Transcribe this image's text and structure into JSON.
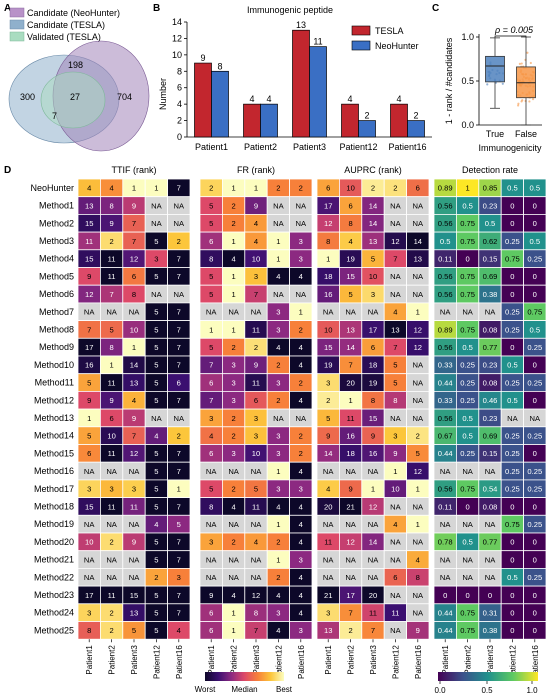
{
  "panel_labels": {
    "a": "A",
    "b": "B",
    "c": "C",
    "d": "D"
  },
  "panel_a": {
    "legend": [
      "Candidate (NeoHunter)",
      "Candidate (TESLA)",
      "Validated (TESLA)"
    ],
    "legend_colors": [
      "#b892c8",
      "#8fb0cc",
      "#a9dcc0"
    ],
    "counts": {
      "tesla_only": "300",
      "neohunter_only": "704",
      "candidate_overlap": "198",
      "all_three": "27",
      "validated_tesla_only": "7"
    }
  },
  "panel_b": {
    "chart_data": {
      "type": "bar",
      "title": "Immunogenic peptide",
      "ylabel": "Number",
      "categories": [
        "Patient1",
        "Patient2",
        "Patient3",
        "Patient12",
        "Patient16"
      ],
      "ylim": [
        0,
        14
      ],
      "yticks": [
        0,
        2,
        4,
        6,
        8,
        10,
        12,
        14
      ],
      "legend_position": "top-right",
      "series": [
        {
          "name": "TESLA",
          "color": "#c2262e",
          "values": [
            9,
            4,
            13,
            4,
            4
          ]
        },
        {
          "name": "NeoHunter",
          "color": "#3a6fc4",
          "values": [
            8,
            4,
            11,
            2,
            2
          ]
        }
      ]
    }
  },
  "panel_c": {
    "chart_data": {
      "type": "box",
      "ylabel": "1 - rank / #candidates",
      "categories": [
        "True",
        "False"
      ],
      "xlabel": "Immunogenicity",
      "ylim": [
        0,
        1
      ],
      "yticks": [
        0.0,
        0.5,
        1.0
      ],
      "annotation": "ρ = 0.005",
      "colors": [
        "#4f81bd",
        "#f79646"
      ],
      "boxes": [
        {
          "name": "True",
          "q1": 0.49,
          "median": 0.67,
          "q3": 0.78,
          "whisker_low": 0.19,
          "whisker_high": 0.99
        },
        {
          "name": "False",
          "q1": 0.31,
          "median": 0.48,
          "q3": 0.66,
          "whisker_low": 0.0,
          "whisker_high": 1.0
        }
      ]
    }
  },
  "panel_d": {
    "chart_data": {
      "type": "heatmap",
      "rows": [
        "NeoHunter",
        "Method1",
        "Method2",
        "Method3",
        "Method4",
        "Method5",
        "Method6",
        "Method7",
        "Method8",
        "Method9",
        "Method10",
        "Method11",
        "Method12",
        "Method13",
        "Method14",
        "Method15",
        "Method16",
        "Method17",
        "Method18",
        "Method19",
        "Method20",
        "Method21",
        "Method22",
        "Method23",
        "Method24",
        "Method25"
      ],
      "columns": [
        "Patient1",
        "Patient2",
        "Patient3",
        "Patient12",
        "Patient16"
      ],
      "rank_colorbar": {
        "labels": [
          "Worst",
          "Median",
          "Best"
        ]
      },
      "rate_colorbar": {
        "ticks": [
          "0.0",
          "0.5",
          "1.0"
        ]
      },
      "blocks": [
        {
          "title": "TTIF (rank)",
          "kind": "rank",
          "values": [
            [
              "4",
              "4",
              "1",
              "1",
              "7"
            ],
            [
              "13",
              "8",
              "9",
              "NA",
              "NA"
            ],
            [
              "15",
              "9",
              "7",
              "NA",
              "NA"
            ],
            [
              "11",
              "2",
              "7",
              "5",
              "2"
            ],
            [
              "15",
              "11",
              "12",
              "3",
              "7"
            ],
            [
              "9",
              "11",
              "6",
              "5",
              "7"
            ],
            [
              "12",
              "7",
              "8",
              "NA",
              "NA"
            ],
            [
              "NA",
              "NA",
              "NA",
              "5",
              "7"
            ],
            [
              "7",
              "5",
              "10",
              "5",
              "7"
            ],
            [
              "17",
              "8",
              "1",
              "5",
              "7"
            ],
            [
              "16",
              "1",
              "14",
              "5",
              "7"
            ],
            [
              "5",
              "11",
              "13",
              "5",
              "6"
            ],
            [
              "9",
              "9",
              "4",
              "5",
              "7"
            ],
            [
              "1",
              "6",
              "9",
              "NA",
              "NA"
            ],
            [
              "5",
              "10",
              "7",
              "4",
              "2"
            ],
            [
              "6",
              "11",
              "12",
              "5",
              "7"
            ],
            [
              "NA",
              "NA",
              "NA",
              "5",
              "7"
            ],
            [
              "3",
              "3",
              "3",
              "5",
              "1"
            ],
            [
              "15",
              "11",
              "11",
              "5",
              "7"
            ],
            [
              "NA",
              "NA",
              "NA",
              "4",
              "5"
            ],
            [
              "10",
              "2",
              "9",
              "5",
              "7"
            ],
            [
              "NA",
              "NA",
              "NA",
              "5",
              "7"
            ],
            [
              "NA",
              "NA",
              "NA",
              "2",
              "3"
            ],
            [
              "17",
              "11",
              "15",
              "5",
              "7"
            ],
            [
              "3",
              "2",
              "13",
              "5",
              "7"
            ],
            [
              "8",
              "2",
              "5",
              "5",
              "4"
            ]
          ]
        },
        {
          "title": "FR (rank)",
          "kind": "rank",
          "values": [
            [
              "2",
              "1",
              "1",
              "2",
              "2"
            ],
            [
              "5",
              "2",
              "9",
              "NA",
              "NA"
            ],
            [
              "5",
              "2",
              "4",
              "NA",
              "NA"
            ],
            [
              "6",
              "1",
              "4",
              "1",
              "3"
            ],
            [
              "8",
              "4",
              "10",
              "1",
              "3"
            ],
            [
              "5",
              "1",
              "3",
              "4",
              "4"
            ],
            [
              "5",
              "1",
              "7",
              "NA",
              "NA"
            ],
            [
              "NA",
              "NA",
              "NA",
              "3",
              "1"
            ],
            [
              "1",
              "1",
              "11",
              "3",
              "2"
            ],
            [
              "5",
              "2",
              "2",
              "4",
              "4"
            ],
            [
              "7",
              "3",
              "9",
              "2",
              "4"
            ],
            [
              "6",
              "3",
              "11",
              "3",
              "2"
            ],
            [
              "7",
              "3",
              "6",
              "2",
              "4"
            ],
            [
              "3",
              "2",
              "3",
              "NA",
              "NA"
            ],
            [
              "4",
              "2",
              "3",
              "3",
              "2"
            ],
            [
              "6",
              "3",
              "10",
              "3",
              "2"
            ],
            [
              "NA",
              "NA",
              "NA",
              "1",
              "4"
            ],
            [
              "5",
              "2",
              "5",
              "3",
              "3"
            ],
            [
              "8",
              "4",
              "11",
              "4",
              "4"
            ],
            [
              "NA",
              "NA",
              "NA",
              "1",
              "4"
            ],
            [
              "3",
              "2",
              "4",
              "2",
              "4"
            ],
            [
              "NA",
              "NA",
              "NA",
              "1",
              "3"
            ],
            [
              "NA",
              "NA",
              "NA",
              "2",
              "4"
            ],
            [
              "9",
              "4",
              "12",
              "4",
              "4"
            ],
            [
              "6",
              "1",
              "8",
              "3",
              "4"
            ],
            [
              "6",
              "1",
              "7",
              "4",
              "3"
            ]
          ]
        },
        {
          "title": "AUPRC (rank)",
          "kind": "rank",
          "values": [
            [
              "6",
              "10",
              "2",
              "2",
              "6"
            ],
            [
              "17",
              "6",
              "14",
              "NA",
              "NA"
            ],
            [
              "12",
              "8",
              "14",
              "NA",
              "NA"
            ],
            [
              "8",
              "4",
              "13",
              "12",
              "14"
            ],
            [
              "1",
              "19",
              "5",
              "7",
              "13"
            ],
            [
              "18",
              "15",
              "10",
              "NA",
              "NA"
            ],
            [
              "16",
              "5",
              "3",
              "NA",
              "NA"
            ],
            [
              "NA",
              "NA",
              "NA",
              "4",
              "1"
            ],
            [
              "10",
              "13",
              "17",
              "13",
              "12"
            ],
            [
              "15",
              "14",
              "6",
              "7",
              "12"
            ],
            [
              "19",
              "7",
              "18",
              "5",
              "NA"
            ],
            [
              "3",
              "20",
              "19",
              "5",
              "NA"
            ],
            [
              "2",
              "1",
              "8",
              "8",
              "NA"
            ],
            [
              "5",
              "11",
              "15",
              "NA",
              "NA"
            ],
            [
              "9",
              "16",
              "9",
              "3",
              "2"
            ],
            [
              "14",
              "18",
              "16",
              "9",
              "5"
            ],
            [
              "NA",
              "NA",
              "NA",
              "1",
              "12"
            ],
            [
              "4",
              "9",
              "1",
              "10",
              "1"
            ],
            [
              "20",
              "21",
              "12",
              "NA",
              "NA"
            ],
            [
              "NA",
              "NA",
              "NA",
              "4",
              "1"
            ],
            [
              "11",
              "12",
              "14",
              "NA",
              "NA"
            ],
            [
              "NA",
              "NA",
              "NA",
              "NA",
              "4"
            ],
            [
              "NA",
              "NA",
              "NA",
              "6",
              "8"
            ],
            [
              "21",
              "17",
              "20",
              "NA",
              "NA"
            ],
            [
              "3",
              "7",
              "11",
              "11",
              "NA"
            ],
            [
              "13",
              "2",
              "7",
              "NA",
              "9"
            ]
          ]
        },
        {
          "title": "Detection rate",
          "kind": "rate",
          "values": [
            [
              "0.89",
              "1",
              "0.85",
              "0.5",
              "0.5"
            ],
            [
              "0.56",
              "0.5",
              "0.23",
              "0",
              "0"
            ],
            [
              "0.56",
              "0.75",
              "0.5",
              "0",
              "0"
            ],
            [
              "0.5",
              "0.75",
              "0.62",
              "0.25",
              "0.5"
            ],
            [
              "0.11",
              "0",
              "0.15",
              "0.75",
              "0.25"
            ],
            [
              "0.56",
              "0.75",
              "0.69",
              "0",
              "0"
            ],
            [
              "0.56",
              "0.75",
              "0.38",
              "0",
              "0"
            ],
            [
              "NA",
              "NA",
              "NA",
              "0.25",
              "0.75"
            ],
            [
              "0.89",
              "0.75",
              "0.08",
              "0.25",
              "0.5"
            ],
            [
              "0.56",
              "0.5",
              "0.77",
              "0",
              "0.25"
            ],
            [
              "0.33",
              "0.25",
              "0.23",
              "0.5",
              "0"
            ],
            [
              "0.44",
              "0.25",
              "0.08",
              "0.25",
              "0.25"
            ],
            [
              "0.33",
              "0.25",
              "0.46",
              "0.5",
              "0"
            ],
            [
              "0.56",
              "0.5",
              "0.23",
              "NA",
              "NA"
            ],
            [
              "0.67",
              "0.5",
              "0.69",
              "0.25",
              "0.25"
            ],
            [
              "0.44",
              "0.25",
              "0.15",
              "0.25",
              "0"
            ],
            [
              "NA",
              "NA",
              "NA",
              "0.25",
              "0.25"
            ],
            [
              "0.56",
              "0.75",
              "0.54",
              "0.25",
              "0.25"
            ],
            [
              "0.11",
              "0",
              "0.08",
              "0",
              "0"
            ],
            [
              "NA",
              "NA",
              "NA",
              "0.75",
              "0.25"
            ],
            [
              "0.78",
              "0.5",
              "0.77",
              "0",
              "0"
            ],
            [
              "NA",
              "NA",
              "NA",
              "0",
              "0"
            ],
            [
              "NA",
              "NA",
              "NA",
              "0.5",
              "0.25"
            ],
            [
              "0",
              "0",
              "0",
              "0",
              "0"
            ],
            [
              "0.44",
              "0.75",
              "0.31",
              "0",
              "0"
            ],
            [
              "0.44",
              "0.75",
              "0.38",
              "0",
              "0"
            ]
          ]
        }
      ]
    }
  }
}
